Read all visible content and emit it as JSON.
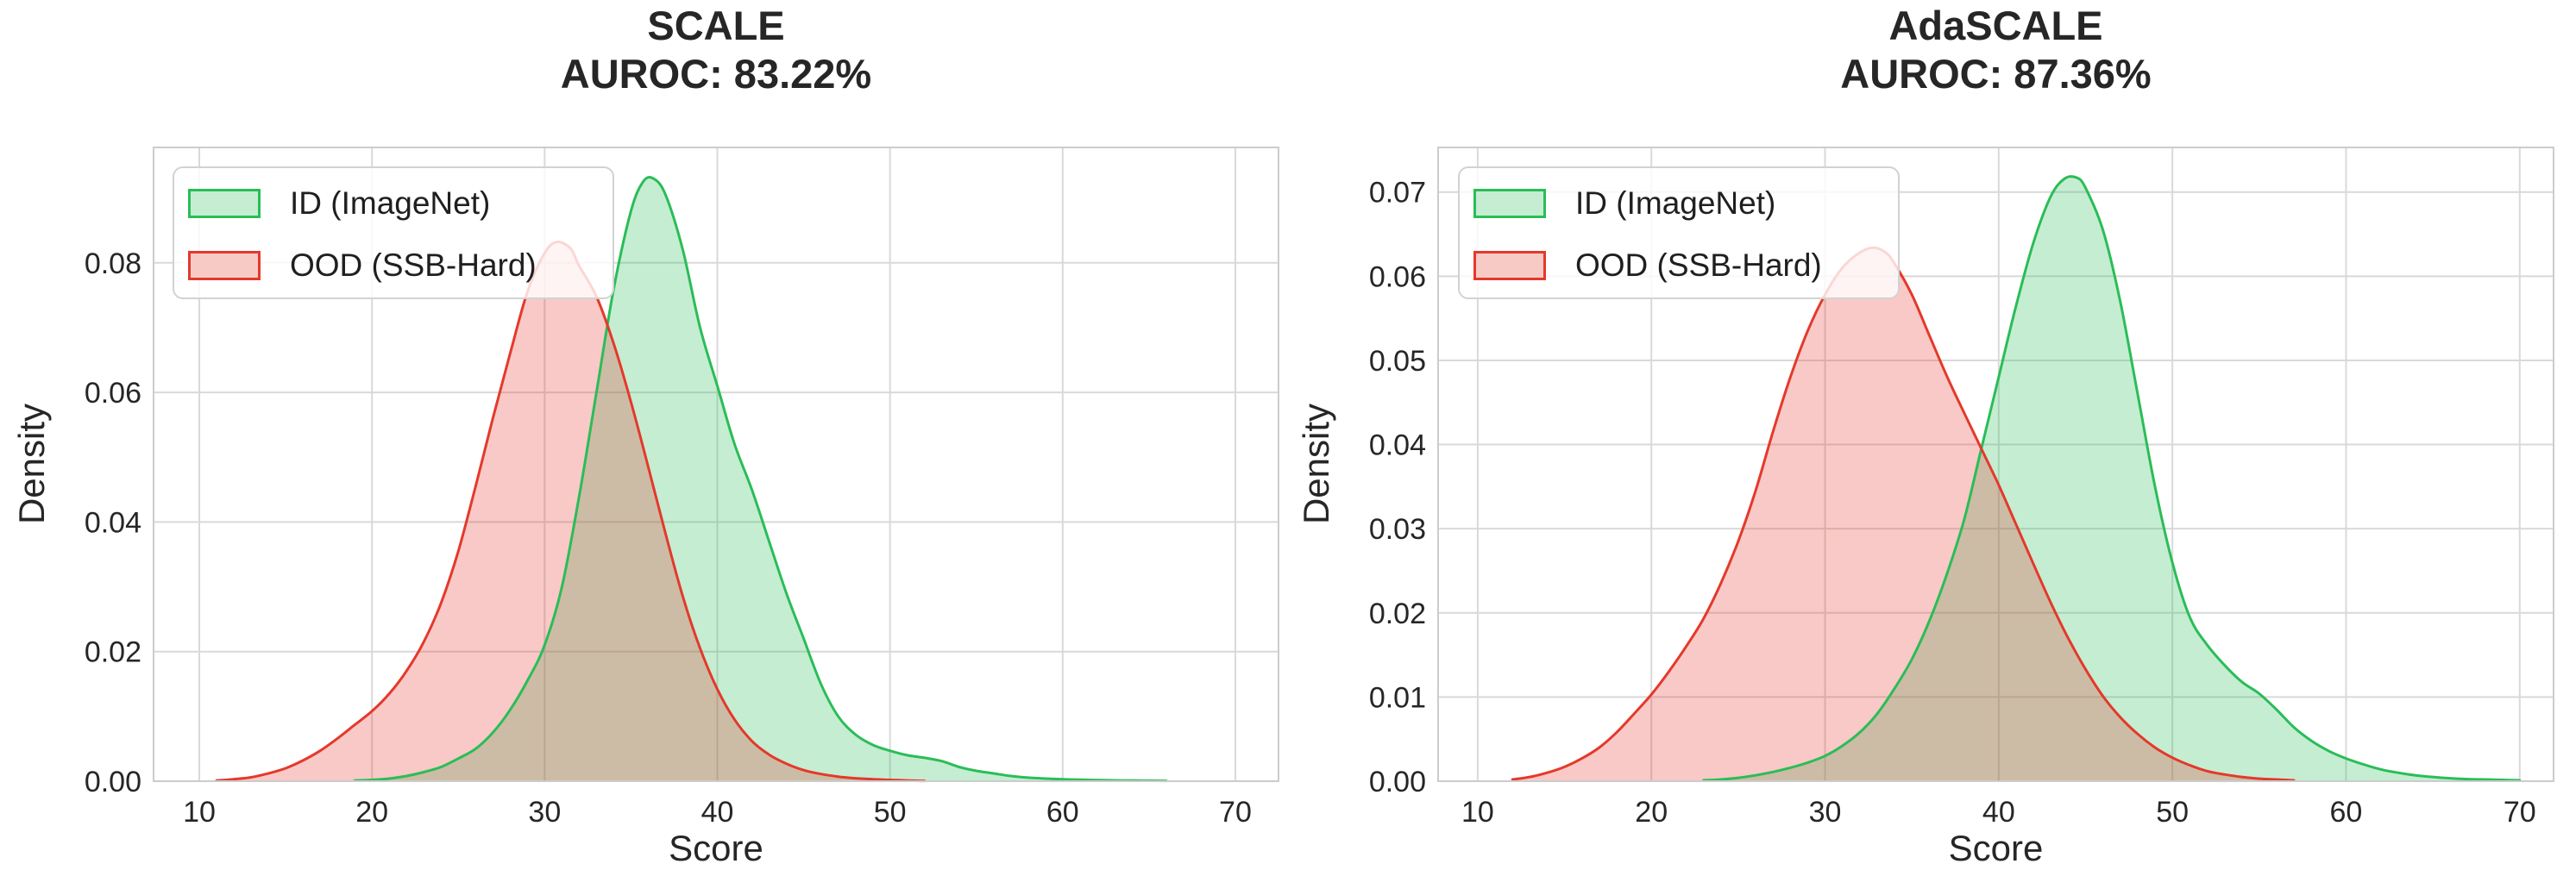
{
  "figure": {
    "background": "#ffffff",
    "text_color": "#262626",
    "grid_color": "#d9d9d9",
    "spine_color": "#cccccc"
  },
  "chart_data": {
    "charts": [
      {
        "title": "SCALE",
        "auroc_label": "AUROC: 83.22%",
        "xlabel": "Score",
        "ylabel": "Density",
        "chart_type": "area",
        "axes": {
          "xlim": [
            7.35,
            72.5
          ],
          "ylim": [
            0,
            0.0978
          ],
          "xticks": [
            10,
            20,
            30,
            40,
            50,
            60,
            70
          ],
          "yticks": [
            0,
            0.02,
            0.04,
            0.06,
            0.08
          ],
          "grid": true
        },
        "legend_position": "upper-left",
        "series": [
          {
            "name": "ID (ImageNet)",
            "line_color": "#2abd57",
            "fill_opacity": 0.27,
            "peak": {
              "x": 36,
              "y": 0.093
            },
            "points": [
              [
                19,
                0.0001
              ],
              [
                20,
                0.0002
              ],
              [
                21,
                0.0004
              ],
              [
                22,
                0.0008
              ],
              [
                23,
                0.0014
              ],
              [
                24,
                0.0022
              ],
              [
                25,
                0.0035
              ],
              [
                26,
                0.005
              ],
              [
                27,
                0.0075
              ],
              [
                28,
                0.011
              ],
              [
                29,
                0.0155
              ],
              [
                30,
                0.021
              ],
              [
                31,
                0.03
              ],
              [
                32,
                0.044
              ],
              [
                33,
                0.06
              ],
              [
                34,
                0.076
              ],
              [
                35,
                0.088
              ],
              [
                35.7,
                0.0925
              ],
              [
                36.3,
                0.093
              ],
              [
                37,
                0.0905
              ],
              [
                38,
                0.082
              ],
              [
                39,
                0.07
              ],
              [
                40,
                0.061
              ],
              [
                41,
                0.052
              ],
              [
                42,
                0.045
              ],
              [
                43,
                0.037
              ],
              [
                44,
                0.029
              ],
              [
                45,
                0.022
              ],
              [
                46,
                0.015
              ],
              [
                47,
                0.01
              ],
              [
                48,
                0.0072
              ],
              [
                49,
                0.0056
              ],
              [
                50,
                0.0047
              ],
              [
                51,
                0.004
              ],
              [
                52,
                0.0036
              ],
              [
                53,
                0.0031
              ],
              [
                54,
                0.0022
              ],
              [
                55,
                0.0016
              ],
              [
                56,
                0.0012
              ],
              [
                57,
                0.0008
              ],
              [
                58,
                0.00055
              ],
              [
                59,
                0.0004
              ],
              [
                60,
                0.0003
              ],
              [
                61,
                0.00022
              ],
              [
                62,
                0.00017
              ],
              [
                63,
                0.00012
              ],
              [
                64,
                0.0001
              ],
              [
                65,
                7e-05
              ],
              [
                66,
                5e-05
              ]
            ]
          },
          {
            "name": "OOD (SSB-Hard)",
            "line_color": "#e4392b",
            "fill_opacity": 0.27,
            "peak": {
              "x": 30.7,
              "y": 0.0832
            },
            "points": [
              [
                11,
                0.0001
              ],
              [
                12,
                0.0003
              ],
              [
                13,
                0.0006
              ],
              [
                14,
                0.0012
              ],
              [
                15,
                0.002
              ],
              [
                16,
                0.0032
              ],
              [
                17,
                0.0047
              ],
              [
                18,
                0.0066
              ],
              [
                19,
                0.0087
              ],
              [
                20,
                0.0108
              ],
              [
                21,
                0.0135
              ],
              [
                22,
                0.017
              ],
              [
                23,
                0.0215
              ],
              [
                24,
                0.0275
              ],
              [
                25,
                0.0355
              ],
              [
                26,
                0.0455
              ],
              [
                27,
                0.056
              ],
              [
                28,
                0.066
              ],
              [
                29,
                0.0755
              ],
              [
                30,
                0.0815
              ],
              [
                30.7,
                0.0832
              ],
              [
                31.5,
                0.0822
              ],
              [
                32,
                0.0795
              ],
              [
                33,
                0.0748
              ],
              [
                34,
                0.0675
              ],
              [
                35,
                0.0585
              ],
              [
                36,
                0.0485
              ],
              [
                37,
                0.0382
              ],
              [
                38,
                0.0285
              ],
              [
                39,
                0.0205
              ],
              [
                40,
                0.0142
              ],
              [
                41,
                0.0095
              ],
              [
                42,
                0.0062
              ],
              [
                43,
                0.0041
              ],
              [
                44,
                0.0027
              ],
              [
                45,
                0.0017
              ],
              [
                46,
                0.0011
              ],
              [
                47,
                0.0007
              ],
              [
                48,
                0.00045
              ],
              [
                49,
                0.0003
              ],
              [
                50,
                0.0002
              ],
              [
                51,
                0.0001
              ],
              [
                52,
                5e-05
              ]
            ]
          }
        ]
      },
      {
        "title": "AdaSCALE",
        "auroc_label": "AUROC: 87.36%",
        "xlabel": "Score",
        "ylabel": "Density",
        "chart_type": "area",
        "axes": {
          "xlim": [
            7.72,
            71.95
          ],
          "ylim": [
            0,
            0.0753
          ],
          "xticks": [
            10,
            20,
            30,
            40,
            50,
            60,
            70
          ],
          "yticks": [
            0,
            0.01,
            0.02,
            0.03,
            0.04,
            0.05,
            0.06,
            0.07
          ],
          "grid": true
        },
        "legend_position": "upper-left",
        "series": [
          {
            "name": "ID (ImageNet)",
            "line_color": "#2abd57",
            "fill_opacity": 0.27,
            "peak": {
              "x": 44,
              "y": 0.0717
            },
            "points": [
              [
                23,
                0.0001
              ],
              [
                24,
                0.0002
              ],
              [
                25,
                0.0004
              ],
              [
                26,
                0.0007
              ],
              [
                27,
                0.0011
              ],
              [
                28,
                0.0016
              ],
              [
                29,
                0.0022
              ],
              [
                30,
                0.003
              ],
              [
                31,
                0.0042
              ],
              [
                32,
                0.0058
              ],
              [
                33,
                0.008
              ],
              [
                34,
                0.011
              ],
              [
                35,
                0.0145
              ],
              [
                36,
                0.019
              ],
              [
                37,
                0.0245
              ],
              [
                38,
                0.031
              ],
              [
                39,
                0.0395
              ],
              [
                40,
                0.048
              ],
              [
                41,
                0.0565
              ],
              [
                42,
                0.064
              ],
              [
                43,
                0.0695
              ],
              [
                43.8,
                0.0716
              ],
              [
                44.5,
                0.0717
              ],
              [
                45,
                0.0705
              ],
              [
                46,
                0.0655
              ],
              [
                47,
                0.057
              ],
              [
                48,
                0.046
              ],
              [
                49,
                0.035
              ],
              [
                50,
                0.026
              ],
              [
                51,
                0.0195
              ],
              [
                52,
                0.0162
              ],
              [
                53,
                0.0138
              ],
              [
                54,
                0.0118
              ],
              [
                55,
                0.0104
              ],
              [
                56,
                0.0085
              ],
              [
                57,
                0.0064
              ],
              [
                58,
                0.0048
              ],
              [
                59,
                0.0036
              ],
              [
                60,
                0.0027
              ],
              [
                61,
                0.002
              ],
              [
                62,
                0.0014
              ],
              [
                63,
                0.001
              ],
              [
                64,
                0.0007
              ],
              [
                65,
                0.0005
              ],
              [
                66,
                0.00035
              ],
              [
                67,
                0.00025
              ],
              [
                68,
                0.0002
              ],
              [
                69,
                0.00015
              ],
              [
                70,
                0.0001
              ]
            ]
          },
          {
            "name": "OOD (SSB-Hard)",
            "line_color": "#e4392b",
            "fill_opacity": 0.27,
            "peak": {
              "x": 32.8,
              "y": 0.0634
            },
            "points": [
              [
                12,
                0.0002
              ],
              [
                13,
                0.0005
              ],
              [
                14,
                0.001
              ],
              [
                15,
                0.0017
              ],
              [
                16,
                0.0027
              ],
              [
                17,
                0.004
              ],
              [
                18,
                0.0058
              ],
              [
                19,
                0.008
              ],
              [
                20,
                0.0103
              ],
              [
                21,
                0.013
              ],
              [
                22,
                0.016
              ],
              [
                23,
                0.0193
              ],
              [
                24,
                0.0235
              ],
              [
                25,
                0.0285
              ],
              [
                26,
                0.0345
              ],
              [
                27,
                0.0415
              ],
              [
                28,
                0.048
              ],
              [
                29,
                0.0535
              ],
              [
                30,
                0.0578
              ],
              [
                31,
                0.061
              ],
              [
                32,
                0.0628
              ],
              [
                32.8,
                0.0634
              ],
              [
                33.5,
                0.0628
              ],
              [
                34,
                0.0615
              ],
              [
                35,
                0.0578
              ],
              [
                36,
                0.053
              ],
              [
                37,
                0.0482
              ],
              [
                38,
                0.0438
              ],
              [
                39,
                0.0395
              ],
              [
                40,
                0.0352
              ],
              [
                41,
                0.0305
              ],
              [
                42,
                0.0258
              ],
              [
                43,
                0.0212
              ],
              [
                44,
                0.017
              ],
              [
                45,
                0.0133
              ],
              [
                46,
                0.0101
              ],
              [
                47,
                0.0076
              ],
              [
                48,
                0.0056
              ],
              [
                49,
                0.004
              ],
              [
                50,
                0.0028
              ],
              [
                51,
                0.0019
              ],
              [
                52,
                0.0012
              ],
              [
                53,
                0.0008
              ],
              [
                54,
                0.0005
              ],
              [
                55,
                0.0003
              ],
              [
                56,
                0.0002
              ],
              [
                57,
                0.0001
              ]
            ]
          }
        ]
      }
    ]
  }
}
